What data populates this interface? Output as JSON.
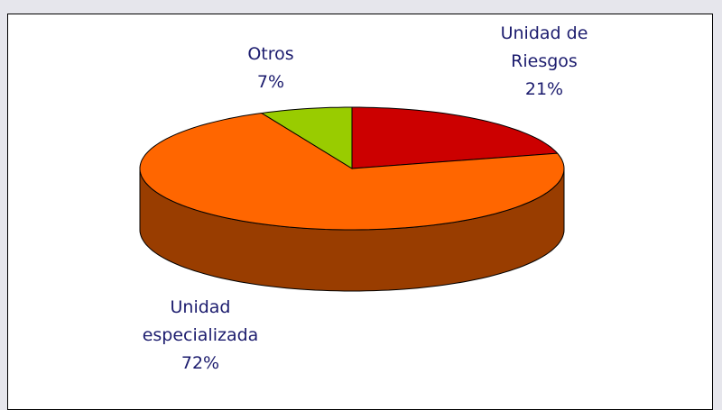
{
  "chart_data": {
    "type": "pie3d",
    "categories": [
      "Unidad de Riesgos",
      "Unidad especializada",
      "Otros"
    ],
    "values": [
      21,
      72,
      7
    ],
    "value_labels": [
      "21%",
      "72%",
      "7%"
    ],
    "colors": [
      "#cc0000",
      "#ff6600",
      "#99cc00"
    ]
  }
}
